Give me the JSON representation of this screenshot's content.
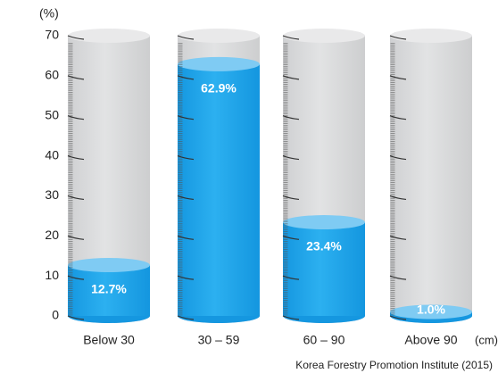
{
  "chart_data": {
    "type": "cylinder-bar",
    "y_unit": "(%)",
    "x_unit": "(cm)",
    "categories": [
      "Below 30",
      "30 – 59",
      "60 – 90",
      "Above 90"
    ],
    "values": [
      12.7,
      62.9,
      23.4,
      1.0
    ],
    "value_labels": [
      "12.7%",
      "62.9%",
      "23.4%",
      "1.0%"
    ],
    "color": "#1ea4e9",
    "ylim": [
      0,
      70
    ],
    "yticks": [
      0,
      10,
      20,
      30,
      40,
      50,
      60,
      70
    ],
    "source": "Korea Forestry Promotion Institute (2015)"
  }
}
